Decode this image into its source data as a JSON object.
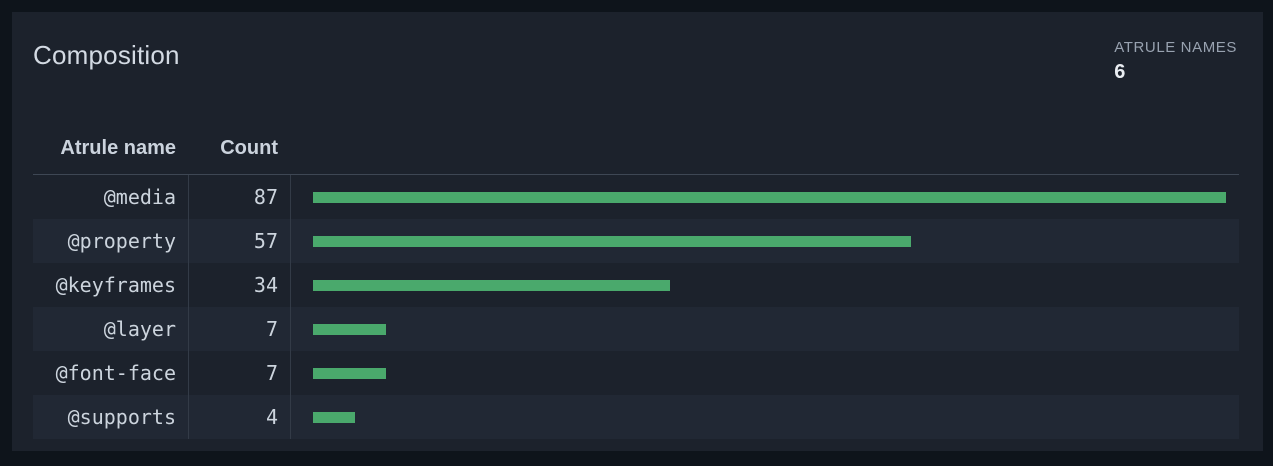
{
  "colors": {
    "outer_bg": "#0e141b",
    "panel_bg": "#1c222c",
    "row_alt_bg": "#212834",
    "bar_green": "#4aa96c"
  },
  "panel": {
    "title": "Composition",
    "stat": {
      "label": "ATRULE NAMES",
      "value": "6"
    }
  },
  "table": {
    "columns": [
      {
        "label": "Atrule name"
      },
      {
        "label": "Count"
      }
    ],
    "max_count": 87,
    "rows": [
      {
        "name": "@media",
        "count": 87
      },
      {
        "name": "@property",
        "count": 57
      },
      {
        "name": "@keyframes",
        "count": 34
      },
      {
        "name": "@layer",
        "count": 7
      },
      {
        "name": "@font-face",
        "count": 7
      },
      {
        "name": "@supports",
        "count": 4
      }
    ]
  },
  "chart_data": {
    "type": "bar",
    "orientation": "horizontal",
    "title": "Composition",
    "categories": [
      "@media",
      "@property",
      "@keyframes",
      "@layer",
      "@font-face",
      "@supports"
    ],
    "values": [
      87,
      57,
      34,
      7,
      7,
      4
    ],
    "xlabel": "Count",
    "ylabel": "Atrule name",
    "xlim": [
      0,
      87
    ],
    "grid": false,
    "legend": false,
    "bar_color": "#4aa96c"
  }
}
